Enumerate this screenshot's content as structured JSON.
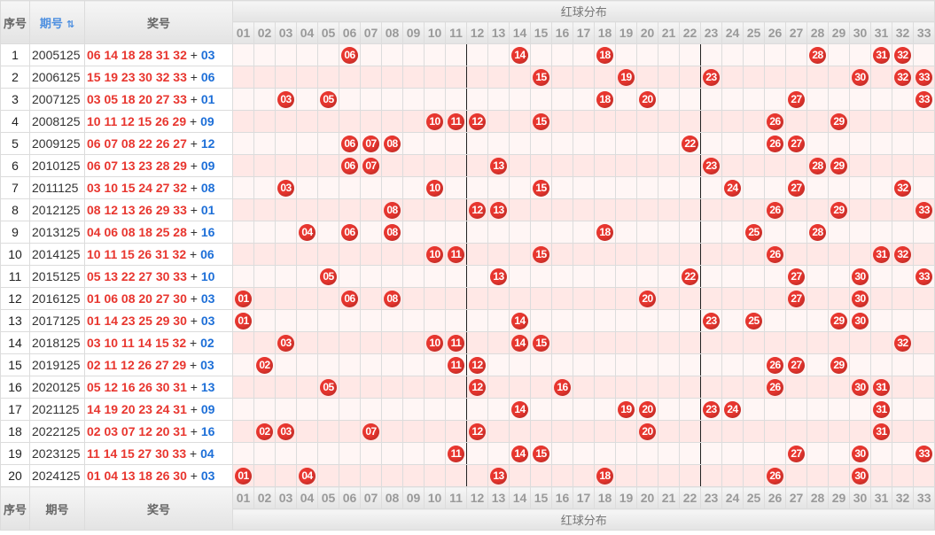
{
  "header": {
    "index_label": "序号",
    "period_label": "期号",
    "prize_label": "奖号",
    "section_title": "红球分布",
    "ball_columns": [
      "01",
      "02",
      "03",
      "04",
      "05",
      "06",
      "07",
      "08",
      "09",
      "10",
      "11",
      "12",
      "13",
      "14",
      "15",
      "16",
      "17",
      "18",
      "19",
      "20",
      "21",
      "22",
      "23",
      "24",
      "25",
      "26",
      "27",
      "28",
      "29",
      "30",
      "31",
      "32",
      "33"
    ]
  },
  "plus_sign": "+",
  "colors": {
    "red_ball": "#e8362f",
    "blue_number": "#1d6fd8",
    "stripe_light": "#fff6f5",
    "stripe_dark": "#ffe8e6"
  },
  "rows": [
    {
      "index": "1",
      "period": "2005125",
      "red": "06 14 18 28 31 32",
      "blue": "03"
    },
    {
      "index": "2",
      "period": "2006125",
      "red": "15 19 23 30 32 33",
      "blue": "06"
    },
    {
      "index": "3",
      "period": "2007125",
      "red": "03 05 18 20 27 33",
      "blue": "01"
    },
    {
      "index": "4",
      "period": "2008125",
      "red": "10 11 12 15 26 29",
      "blue": "09"
    },
    {
      "index": "5",
      "period": "2009125",
      "red": "06 07 08 22 26 27",
      "blue": "12"
    },
    {
      "index": "6",
      "period": "2010125",
      "red": "06 07 13 23 28 29",
      "blue": "09"
    },
    {
      "index": "7",
      "period": "2011125",
      "red": "03 10 15 24 27 32",
      "blue": "08"
    },
    {
      "index": "8",
      "period": "2012125",
      "red": "08 12 13 26 29 33",
      "blue": "01"
    },
    {
      "index": "9",
      "period": "2013125",
      "red": "04 06 08 18 25 28",
      "blue": "16"
    },
    {
      "index": "10",
      "period": "2014125",
      "red": "10 11 15 26 31 32",
      "blue": "06"
    },
    {
      "index": "11",
      "period": "2015125",
      "red": "05 13 22 27 30 33",
      "blue": "10"
    },
    {
      "index": "12",
      "period": "2016125",
      "red": "01 06 08 20 27 30",
      "blue": "03"
    },
    {
      "index": "13",
      "period": "2017125",
      "red": "01 14 23 25 29 30",
      "blue": "03"
    },
    {
      "index": "14",
      "period": "2018125",
      "red": "03 10 11 14 15 32",
      "blue": "02"
    },
    {
      "index": "15",
      "period": "2019125",
      "red": "02 11 12 26 27 29",
      "blue": "03"
    },
    {
      "index": "16",
      "period": "2020125",
      "red": "05 12 16 26 30 31",
      "blue": "13"
    },
    {
      "index": "17",
      "period": "2021125",
      "red": "14 19 20 23 24 31",
      "blue": "09"
    },
    {
      "index": "18",
      "period": "2022125",
      "red": "02 03 07 12 20 31",
      "blue": "16"
    },
    {
      "index": "19",
      "period": "2023125",
      "red": "11 14 15 27 30 33",
      "blue": "04"
    },
    {
      "index": "20",
      "period": "2024125",
      "red": "01 04 13 18 26 30",
      "blue": "03"
    }
  ]
}
